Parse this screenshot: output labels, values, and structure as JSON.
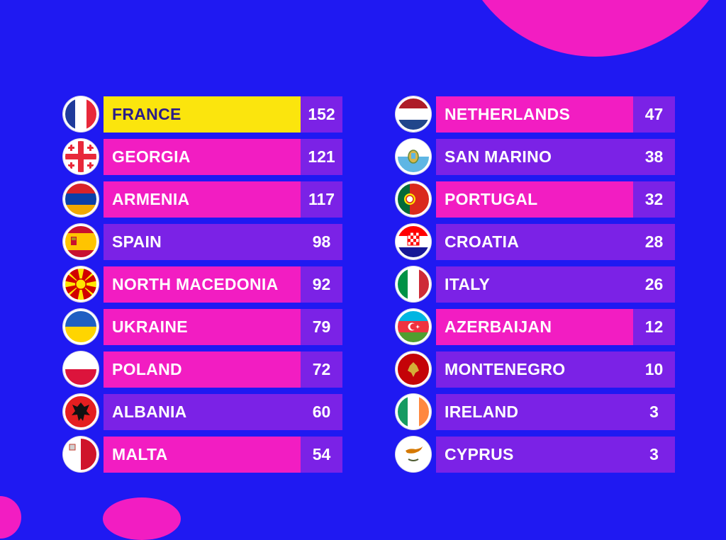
{
  "colors": {
    "background": "#1f19f2",
    "pink": "#f21dc2",
    "purple": "#7b22e6",
    "gold": "#fbe50d",
    "gold_text": "#2a1c8a",
    "text": "#ffffff"
  },
  "left_column": [
    {
      "country": "FRANCE",
      "points": "152",
      "flag_icon": "france-flag-icon",
      "highlight": "gold"
    },
    {
      "country": "GEORGIA",
      "points": "121",
      "flag_icon": "georgia-flag-icon",
      "highlight": "pink"
    },
    {
      "country": "ARMENIA",
      "points": "117",
      "flag_icon": "armenia-flag-icon",
      "highlight": "pink"
    },
    {
      "country": "SPAIN",
      "points": "98",
      "flag_icon": "spain-flag-icon",
      "highlight": "purple"
    },
    {
      "country": "NORTH MACEDONIA",
      "points": "92",
      "flag_icon": "north-macedonia-flag-icon",
      "highlight": "pink"
    },
    {
      "country": "UKRAINE",
      "points": "79",
      "flag_icon": "ukraine-flag-icon",
      "highlight": "pink"
    },
    {
      "country": "POLAND",
      "points": "72",
      "flag_icon": "poland-flag-icon",
      "highlight": "pink"
    },
    {
      "country": "ALBANIA",
      "points": "60",
      "flag_icon": "albania-flag-icon",
      "highlight": "purple"
    },
    {
      "country": "MALTA",
      "points": "54",
      "flag_icon": "malta-flag-icon",
      "highlight": "pink"
    }
  ],
  "right_column": [
    {
      "country": "NETHERLANDS",
      "points": "47",
      "flag_icon": "netherlands-flag-icon",
      "highlight": "pink"
    },
    {
      "country": "SAN MARINO",
      "points": "38",
      "flag_icon": "san-marino-flag-icon",
      "highlight": "purple"
    },
    {
      "country": "PORTUGAL",
      "points": "32",
      "flag_icon": "portugal-flag-icon",
      "highlight": "pink"
    },
    {
      "country": "CROATIA",
      "points": "28",
      "flag_icon": "croatia-flag-icon",
      "highlight": "purple"
    },
    {
      "country": "ITALY",
      "points": "26",
      "flag_icon": "italy-flag-icon",
      "highlight": "purple"
    },
    {
      "country": "AZERBAIJAN",
      "points": "12",
      "flag_icon": "azerbaijan-flag-icon",
      "highlight": "pink"
    },
    {
      "country": "MONTENEGRO",
      "points": "10",
      "flag_icon": "montenegro-flag-icon",
      "highlight": "purple"
    },
    {
      "country": "IRELAND",
      "points": "3",
      "flag_icon": "ireland-flag-icon",
      "highlight": "purple"
    },
    {
      "country": "CYPRUS",
      "points": "3",
      "flag_icon": "cyprus-flag-icon",
      "highlight": "purple"
    }
  ]
}
